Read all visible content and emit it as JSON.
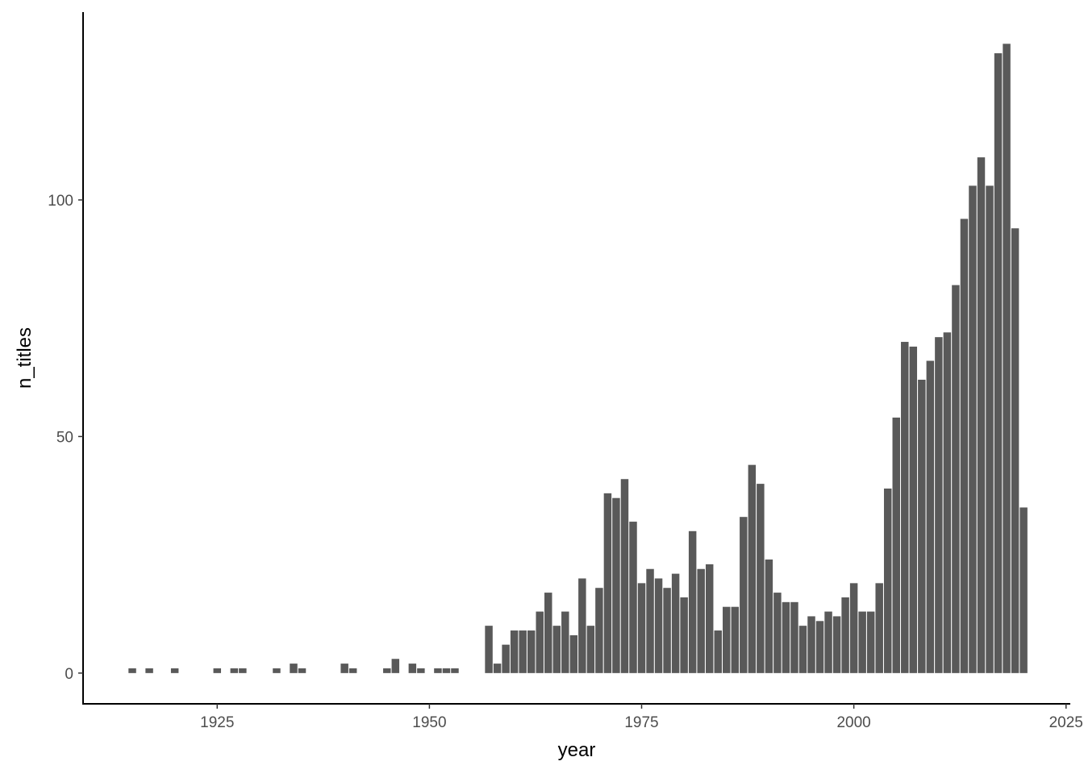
{
  "chart_data": {
    "type": "bar",
    "xlabel": "year",
    "ylabel": "n_titles",
    "xlim": [
      1909.2,
      2025.5
    ],
    "ylim": [
      -6.5,
      139.7
    ],
    "xticks": [
      1925,
      1950,
      1975,
      2000,
      2025
    ],
    "yticks": [
      0,
      50,
      100
    ],
    "grid": false,
    "bar_color": "#595959",
    "x": [
      1915,
      1917,
      1920,
      1925,
      1927,
      1928,
      1932,
      1934,
      1935,
      1940,
      1941,
      1945,
      1946,
      1948,
      1949,
      1951,
      1952,
      1953,
      1957,
      1958,
      1959,
      1960,
      1961,
      1962,
      1963,
      1964,
      1965,
      1966,
      1967,
      1968,
      1969,
      1970,
      1971,
      1972,
      1973,
      1974,
      1975,
      1976,
      1977,
      1978,
      1979,
      1980,
      1981,
      1982,
      1983,
      1984,
      1985,
      1986,
      1987,
      1988,
      1989,
      1990,
      1991,
      1992,
      1993,
      1994,
      1995,
      1996,
      1997,
      1998,
      1999,
      2000,
      2001,
      2002,
      2003,
      2004,
      2005,
      2006,
      2007,
      2008,
      2009,
      2010,
      2011,
      2012,
      2013,
      2014,
      2015,
      2016,
      2017,
      2018,
      2019,
      2020
    ],
    "values": [
      1,
      1,
      1,
      1,
      1,
      1,
      1,
      2,
      1,
      2,
      1,
      1,
      3,
      2,
      1,
      1,
      1,
      1,
      10,
      2,
      6,
      9,
      9,
      9,
      13,
      17,
      10,
      13,
      8,
      20,
      10,
      18,
      38,
      37,
      41,
      32,
      19,
      22,
      20,
      18,
      21,
      16,
      30,
      22,
      23,
      9,
      14,
      14,
      33,
      44,
      40,
      24,
      17,
      15,
      15,
      10,
      12,
      11,
      13,
      12,
      16,
      19,
      13,
      13,
      19,
      39,
      54,
      70,
      69,
      62,
      66,
      71,
      72,
      82,
      96,
      103,
      109,
      103,
      131,
      133,
      94,
      35
    ]
  }
}
